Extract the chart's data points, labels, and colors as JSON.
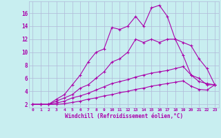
{
  "xlabel": "Windchill (Refroidissement éolien,°C)",
  "bg_color": "#c8eef0",
  "grid_color": "#b0b8d8",
  "line_color": "#aa00aa",
  "xlim": [
    -0.5,
    23.5
  ],
  "ylim": [
    1.5,
    17.8
  ],
  "xticks": [
    0,
    1,
    2,
    3,
    4,
    5,
    6,
    7,
    8,
    9,
    10,
    11,
    12,
    13,
    14,
    15,
    16,
    17,
    18,
    19,
    20,
    21,
    22,
    23
  ],
  "yticks": [
    2,
    4,
    6,
    8,
    10,
    12,
    14,
    16
  ],
  "lines": [
    {
      "x": [
        0,
        1,
        2,
        3,
        4,
        5,
        6,
        7,
        8,
        9,
        10,
        11,
        12,
        13,
        14,
        15,
        16,
        17,
        18,
        19,
        20,
        21,
        22,
        23
      ],
      "y": [
        2,
        2,
        2,
        2.8,
        3.5,
        5.0,
        6.5,
        8.5,
        10.0,
        10.5,
        13.8,
        13.5,
        14.0,
        15.5,
        14.0,
        16.8,
        17.2,
        15.5,
        12.0,
        9.5,
        6.5,
        6.0,
        5.0,
        5.0
      ]
    },
    {
      "x": [
        0,
        1,
        2,
        3,
        4,
        5,
        6,
        7,
        8,
        9,
        10,
        11,
        12,
        13,
        14,
        15,
        16,
        17,
        18,
        19,
        20,
        21,
        22,
        23
      ],
      "y": [
        2,
        2,
        2,
        2.5,
        3.0,
        3.5,
        4.5,
        5.0,
        6.0,
        7.0,
        8.5,
        9.0,
        10.0,
        12.0,
        11.5,
        12.0,
        11.5,
        12.0,
        12.0,
        11.5,
        11.0,
        9.0,
        7.5,
        5.0
      ]
    },
    {
      "x": [
        0,
        1,
        2,
        3,
        4,
        5,
        6,
        7,
        8,
        9,
        10,
        11,
        12,
        13,
        14,
        15,
        16,
        17,
        18,
        19,
        20,
        21,
        22,
        23
      ],
      "y": [
        2,
        2,
        2,
        2.2,
        2.5,
        3.0,
        3.3,
        3.7,
        4.2,
        4.7,
        5.2,
        5.5,
        5.8,
        6.2,
        6.5,
        6.8,
        7.0,
        7.2,
        7.5,
        7.8,
        6.5,
        5.5,
        5.2,
        5.0
      ]
    },
    {
      "x": [
        0,
        1,
        2,
        3,
        4,
        5,
        6,
        7,
        8,
        9,
        10,
        11,
        12,
        13,
        14,
        15,
        16,
        17,
        18,
        19,
        20,
        21,
        22,
        23
      ],
      "y": [
        2,
        2,
        2,
        2.0,
        2.1,
        2.3,
        2.5,
        2.8,
        3.0,
        3.3,
        3.5,
        3.8,
        4.0,
        4.3,
        4.5,
        4.8,
        5.0,
        5.2,
        5.4,
        5.6,
        4.8,
        4.3,
        4.2,
        5.0
      ]
    }
  ]
}
